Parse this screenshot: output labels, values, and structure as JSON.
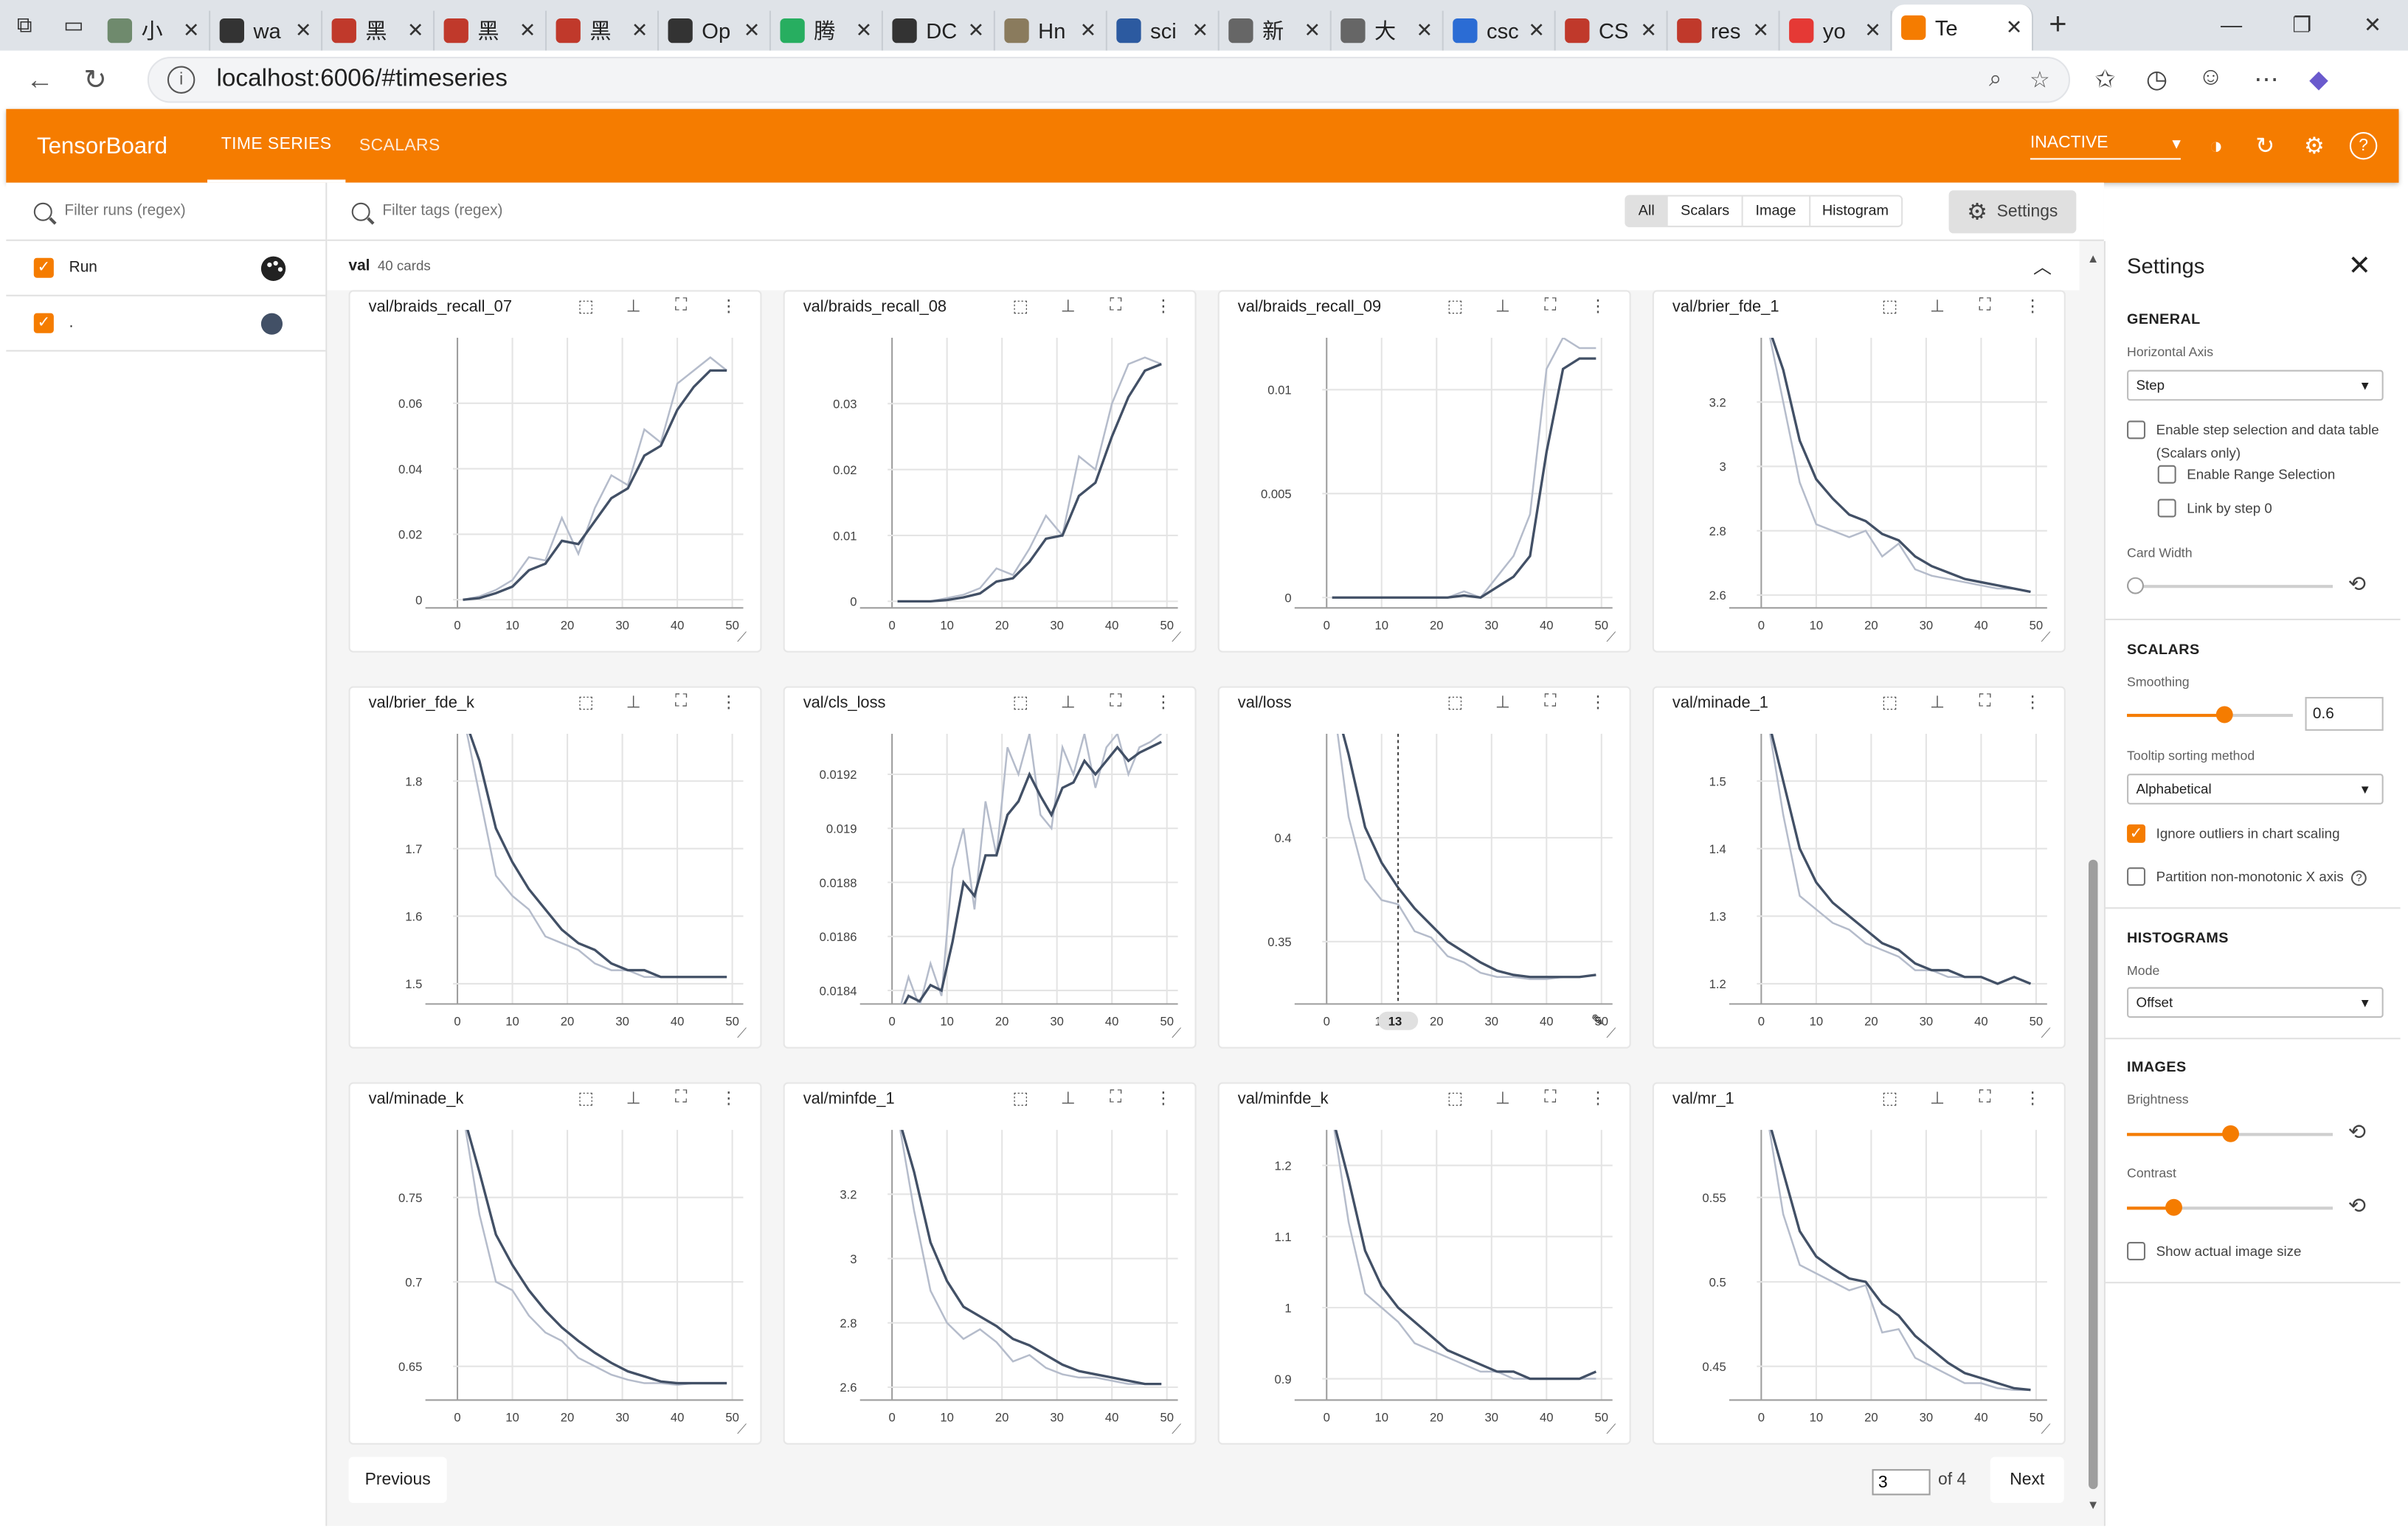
{
  "browser": {
    "tabs": [
      {
        "label": "小",
        "color": "#6f8a6d"
      },
      {
        "label": "wa",
        "color": "#333333"
      },
      {
        "label": "黑",
        "color": "#c0392b"
      },
      {
        "label": "黑",
        "color": "#c0392b"
      },
      {
        "label": "黑",
        "color": "#c0392b"
      },
      {
        "label": "Op",
        "color": "#333333"
      },
      {
        "label": "腾",
        "color": "#27ae60"
      },
      {
        "label": "DC",
        "color": "#333333"
      },
      {
        "label": "Hn",
        "color": "#8a7b5d"
      },
      {
        "label": "sci",
        "color": "#2c5aa0"
      },
      {
        "label": "新",
        "color": "#666666"
      },
      {
        "label": "大",
        "color": "#666666"
      },
      {
        "label": "csc",
        "color": "#2b6cd4"
      },
      {
        "label": "CS",
        "color": "#c0392b"
      },
      {
        "label": "res",
        "color": "#c0392b"
      },
      {
        "label": "yo",
        "color": "#e53935"
      },
      {
        "label": "Te",
        "color": "#f57c00",
        "active": true
      }
    ],
    "address": "localhost:6006/#timeseries"
  },
  "header": {
    "brand": "TensorBoard",
    "tabs": [
      "TIME SERIES",
      "SCALARS"
    ],
    "active_tab": 0,
    "reload_status": "INACTIVE",
    "accent": "#f57c00"
  },
  "sidebar": {
    "filter_placeholder": "Filter runs (regex)",
    "header_label": "Run",
    "runs": [
      {
        "name": ".",
        "color": "#425066"
      }
    ]
  },
  "main": {
    "tag_filter_placeholder": "Filter tags (regex)",
    "type_filters": [
      "All",
      "Scalars",
      "Image",
      "Histogram"
    ],
    "settings_button": "Settings",
    "group_name": "val",
    "group_count": "40 cards",
    "hover_step": "13"
  },
  "pagination": {
    "previous": "Previous",
    "next": "Next",
    "page": "3",
    "of_text": "of 4"
  },
  "settings": {
    "title": "Settings",
    "general": "GENERAL",
    "horizontal_axis_label": "Horizontal Axis",
    "horizontal_axis_value": "Step",
    "enable_step_selection": "Enable step selection and data table",
    "scalars_only": "(Scalars only)",
    "enable_range_selection": "Enable Range Selection",
    "link_by_step": "Link by step 0",
    "card_width_label": "Card Width",
    "card_width": 0.0,
    "scalars": "SCALARS",
    "smoothing_label": "Smoothing",
    "smoothing": "0.6",
    "tooltip_sorting_label": "Tooltip sorting method",
    "tooltip_sorting_value": "Alphabetical",
    "ignore_outliers": "Ignore outliers in chart scaling",
    "partition_nonmonotonic": "Partition non-monotonic X axis",
    "histograms": "HISTOGRAMS",
    "mode_label": "Mode",
    "mode_value": "Offset",
    "images": "IMAGES",
    "brightness_label": "Brightness",
    "brightness": 0.5,
    "contrast_label": "Contrast",
    "contrast": 0.2,
    "show_actual_size": "Show actual image size"
  },
  "chart_data": [
    {
      "type": "line",
      "title": "val/braids_recall_07",
      "xticks": [
        0,
        10,
        20,
        30,
        40,
        50
      ],
      "yticks": [
        "0",
        "0.02",
        "0.04",
        "0.06"
      ],
      "ylim": [
        -0.0025,
        0.08
      ],
      "x": [
        1,
        4,
        7,
        10,
        13,
        16,
        19,
        22,
        25,
        28,
        31,
        34,
        37,
        40,
        43,
        46,
        49
      ],
      "series": [
        {
          "name": "raw",
          "values": [
            0,
            0.001,
            0.003,
            0.006,
            0.013,
            0.012,
            0.025,
            0.014,
            0.028,
            0.038,
            0.035,
            0.052,
            0.048,
            0.066,
            0.07,
            0.074,
            0.07
          ]
        },
        {
          "name": "smoothed",
          "values": [
            0,
            0.0005,
            0.002,
            0.004,
            0.009,
            0.011,
            0.018,
            0.017,
            0.024,
            0.031,
            0.034,
            0.044,
            0.047,
            0.058,
            0.065,
            0.07,
            0.07
          ]
        }
      ]
    },
    {
      "type": "line",
      "title": "val/braids_recall_08",
      "xticks": [
        0,
        10,
        20,
        30,
        40,
        50
      ],
      "yticks": [
        "0",
        "0.01",
        "0.02",
        "0.03"
      ],
      "ylim": [
        -0.001,
        0.04
      ],
      "x": [
        1,
        4,
        7,
        10,
        13,
        16,
        19,
        22,
        25,
        28,
        31,
        34,
        37,
        40,
        43,
        46,
        49
      ],
      "series": [
        {
          "name": "raw",
          "values": [
            0,
            0,
            0,
            0.0005,
            0.001,
            0.002,
            0.005,
            0.004,
            0.008,
            0.013,
            0.01,
            0.022,
            0.02,
            0.03,
            0.036,
            0.037,
            0.036
          ]
        },
        {
          "name": "smoothed",
          "values": [
            0,
            0,
            0,
            0.0002,
            0.0006,
            0.0012,
            0.003,
            0.0035,
            0.006,
            0.0095,
            0.01,
            0.016,
            0.018,
            0.025,
            0.031,
            0.035,
            0.036
          ]
        }
      ]
    },
    {
      "type": "line",
      "title": "val/braids_recall_09",
      "xticks": [
        0,
        10,
        20,
        30,
        40,
        50
      ],
      "yticks": [
        "0",
        "0.005",
        "0.01"
      ],
      "ylim": [
        -0.0005,
        0.0125
      ],
      "x": [
        1,
        4,
        7,
        10,
        13,
        16,
        19,
        22,
        25,
        28,
        31,
        34,
        37,
        40,
        43,
        46,
        49
      ],
      "series": [
        {
          "name": "raw",
          "values": [
            0,
            0,
            0,
            0,
            0,
            0,
            0,
            0,
            0.0003,
            0,
            0.001,
            0.002,
            0.004,
            0.011,
            0.0125,
            0.012,
            0.012
          ]
        },
        {
          "name": "smoothed",
          "values": [
            0,
            0,
            0,
            0,
            0,
            0,
            0,
            0,
            0.0001,
            0,
            0.0005,
            0.001,
            0.002,
            0.007,
            0.011,
            0.0115,
            0.0115
          ]
        }
      ]
    },
    {
      "type": "line",
      "title": "val/brier_fde_1",
      "xticks": [
        0,
        10,
        20,
        30,
        40,
        50
      ],
      "yticks": [
        "2.6",
        "2.8",
        "3",
        "3.2"
      ],
      "ylim": [
        2.56,
        3.4
      ],
      "x": [
        1,
        4,
        7,
        10,
        13,
        16,
        19,
        22,
        25,
        28,
        31,
        34,
        37,
        40,
        43,
        46,
        49
      ],
      "series": [
        {
          "name": "raw",
          "values": [
            3.45,
            3.2,
            2.95,
            2.82,
            2.8,
            2.78,
            2.8,
            2.72,
            2.76,
            2.68,
            2.66,
            2.65,
            2.64,
            2.63,
            2.62,
            2.62,
            2.61
          ]
        },
        {
          "name": "smoothed",
          "values": [
            3.45,
            3.3,
            3.08,
            2.96,
            2.9,
            2.85,
            2.83,
            2.79,
            2.77,
            2.72,
            2.69,
            2.67,
            2.65,
            2.64,
            2.63,
            2.62,
            2.61
          ]
        }
      ]
    },
    {
      "type": "line",
      "title": "val/brier_fde_k",
      "xticks": [
        0,
        10,
        20,
        30,
        40,
        50
      ],
      "yticks": [
        "1.5",
        "1.6",
        "1.7",
        "1.8"
      ],
      "ylim": [
        1.47,
        1.87
      ],
      "x": [
        1,
        4,
        7,
        10,
        13,
        16,
        19,
        22,
        25,
        28,
        31,
        34,
        37,
        40,
        43,
        46,
        49
      ],
      "series": [
        {
          "name": "raw",
          "values": [
            1.9,
            1.78,
            1.66,
            1.63,
            1.61,
            1.57,
            1.56,
            1.55,
            1.53,
            1.52,
            1.52,
            1.51,
            1.51,
            1.51,
            1.51,
            1.51,
            1.51
          ]
        },
        {
          "name": "smoothed",
          "values": [
            1.9,
            1.83,
            1.73,
            1.68,
            1.64,
            1.61,
            1.58,
            1.56,
            1.55,
            1.53,
            1.52,
            1.52,
            1.51,
            1.51,
            1.51,
            1.51,
            1.51
          ]
        }
      ]
    },
    {
      "type": "line",
      "title": "val/cls_loss",
      "xticks": [
        0,
        10,
        20,
        30,
        40,
        50
      ],
      "yticks": [
        "0.0184",
        "0.0186",
        "0.0188",
        "0.019",
        "0.0192"
      ],
      "ylim": [
        0.01835,
        0.01935
      ],
      "x": [
        1,
        3,
        5,
        7,
        9,
        11,
        13,
        15,
        17,
        19,
        21,
        23,
        25,
        27,
        29,
        31,
        33,
        35,
        37,
        39,
        41,
        43,
        45,
        47,
        49
      ],
      "series": [
        {
          "name": "raw",
          "values": [
            0.0183,
            0.01845,
            0.01834,
            0.0185,
            0.01838,
            0.01885,
            0.019,
            0.0187,
            0.0191,
            0.0189,
            0.0193,
            0.0192,
            0.01935,
            0.01905,
            0.019,
            0.0193,
            0.0192,
            0.01935,
            0.01915,
            0.0193,
            0.01935,
            0.0192,
            0.0193,
            0.01932,
            0.01935
          ]
        },
        {
          "name": "smoothed",
          "values": [
            0.0183,
            0.01838,
            0.01836,
            0.01842,
            0.0184,
            0.01858,
            0.0188,
            0.01875,
            0.0189,
            0.0189,
            0.01905,
            0.0191,
            0.0192,
            0.01912,
            0.01905,
            0.01915,
            0.01917,
            0.01925,
            0.0192,
            0.01925,
            0.0193,
            0.01925,
            0.01928,
            0.0193,
            0.01932
          ]
        }
      ]
    },
    {
      "type": "line",
      "title": "val/loss",
      "xticks": [
        0,
        10,
        20,
        30,
        40,
        50
      ],
      "yticks": [
        "0.35",
        "0.4"
      ],
      "ylim": [
        0.32,
        0.45
      ],
      "x": [
        1,
        4,
        7,
        10,
        13,
        16,
        19,
        22,
        25,
        28,
        31,
        34,
        37,
        40,
        43,
        46,
        49
      ],
      "series": [
        {
          "name": "raw",
          "values": [
            0.47,
            0.41,
            0.38,
            0.37,
            0.368,
            0.355,
            0.352,
            0.343,
            0.34,
            0.335,
            0.333,
            0.333,
            0.332,
            0.332,
            0.333,
            0.333,
            0.334
          ]
        },
        {
          "name": "smoothed",
          "values": [
            0.47,
            0.44,
            0.405,
            0.388,
            0.376,
            0.366,
            0.358,
            0.35,
            0.345,
            0.34,
            0.336,
            0.334,
            0.333,
            0.333,
            0.333,
            0.333,
            0.334
          ]
        }
      ]
    },
    {
      "type": "line",
      "title": "val/minade_1",
      "xticks": [
        0,
        10,
        20,
        30,
        40,
        50
      ],
      "yticks": [
        "1.2",
        "1.3",
        "1.4",
        "1.5"
      ],
      "ylim": [
        1.17,
        1.57
      ],
      "x": [
        1,
        4,
        7,
        10,
        13,
        16,
        19,
        22,
        25,
        28,
        31,
        34,
        37,
        40,
        43,
        46,
        49
      ],
      "series": [
        {
          "name": "raw",
          "values": [
            1.6,
            1.45,
            1.33,
            1.31,
            1.29,
            1.28,
            1.26,
            1.25,
            1.24,
            1.22,
            1.22,
            1.21,
            1.21,
            1.21,
            1.2,
            1.21,
            1.2
          ]
        },
        {
          "name": "smoothed",
          "values": [
            1.6,
            1.5,
            1.4,
            1.35,
            1.32,
            1.3,
            1.28,
            1.26,
            1.25,
            1.23,
            1.22,
            1.22,
            1.21,
            1.21,
            1.2,
            1.21,
            1.2
          ]
        }
      ]
    },
    {
      "type": "line",
      "title": "val/minade_k",
      "xticks": [
        0,
        10,
        20,
        30,
        40,
        50
      ],
      "yticks": [
        "0.65",
        "0.7",
        "0.75"
      ],
      "ylim": [
        0.63,
        0.79
      ],
      "x": [
        1,
        4,
        7,
        10,
        13,
        16,
        19,
        22,
        25,
        28,
        31,
        34,
        37,
        40,
        43,
        46,
        49
      ],
      "series": [
        {
          "name": "raw",
          "values": [
            0.8,
            0.74,
            0.7,
            0.695,
            0.68,
            0.67,
            0.665,
            0.655,
            0.65,
            0.645,
            0.642,
            0.64,
            0.64,
            0.639,
            0.64,
            0.64,
            0.64
          ]
        },
        {
          "name": "smoothed",
          "values": [
            0.8,
            0.765,
            0.728,
            0.71,
            0.695,
            0.683,
            0.673,
            0.665,
            0.658,
            0.652,
            0.647,
            0.644,
            0.641,
            0.64,
            0.64,
            0.64,
            0.64
          ]
        }
      ]
    },
    {
      "type": "line",
      "title": "val/minfde_1",
      "xticks": [
        0,
        10,
        20,
        30,
        40,
        50
      ],
      "yticks": [
        "2.6",
        "2.8",
        "3",
        "3.2"
      ],
      "ylim": [
        2.56,
        3.4
      ],
      "x": [
        1,
        4,
        7,
        10,
        13,
        16,
        19,
        22,
        25,
        28,
        31,
        34,
        37,
        40,
        43,
        46,
        49
      ],
      "series": [
        {
          "name": "raw",
          "values": [
            3.45,
            3.15,
            2.9,
            2.8,
            2.75,
            2.78,
            2.74,
            2.68,
            2.7,
            2.66,
            2.64,
            2.63,
            2.63,
            2.62,
            2.61,
            2.61,
            2.61
          ]
        },
        {
          "name": "smoothed",
          "values": [
            3.45,
            3.27,
            3.05,
            2.93,
            2.85,
            2.82,
            2.79,
            2.75,
            2.73,
            2.7,
            2.67,
            2.65,
            2.64,
            2.63,
            2.62,
            2.61,
            2.61
          ]
        }
      ]
    },
    {
      "type": "line",
      "title": "val/minfde_k",
      "xticks": [
        0,
        10,
        20,
        30,
        40,
        50
      ],
      "yticks": [
        "0.9",
        "1",
        "1.1",
        "1.2"
      ],
      "ylim": [
        0.87,
        1.25
      ],
      "x": [
        1,
        4,
        7,
        10,
        13,
        16,
        19,
        22,
        25,
        28,
        31,
        34,
        37,
        40,
        43,
        46,
        49
      ],
      "series": [
        {
          "name": "raw",
          "values": [
            1.27,
            1.12,
            1.02,
            1.0,
            0.98,
            0.95,
            0.94,
            0.93,
            0.92,
            0.91,
            0.91,
            0.9,
            0.9,
            0.9,
            0.9,
            0.9,
            0.9
          ]
        },
        {
          "name": "smoothed",
          "values": [
            1.27,
            1.18,
            1.08,
            1.03,
            1.0,
            0.98,
            0.96,
            0.94,
            0.93,
            0.92,
            0.91,
            0.91,
            0.9,
            0.9,
            0.9,
            0.9,
            0.91
          ]
        }
      ]
    },
    {
      "type": "line",
      "title": "val/mr_1",
      "xticks": [
        0,
        10,
        20,
        30,
        40,
        50
      ],
      "yticks": [
        "0.45",
        "0.5",
        "0.55"
      ],
      "ylim": [
        0.43,
        0.59
      ],
      "x": [
        1,
        4,
        7,
        10,
        13,
        16,
        19,
        22,
        25,
        28,
        31,
        34,
        37,
        40,
        43,
        46,
        49
      ],
      "series": [
        {
          "name": "raw",
          "values": [
            0.6,
            0.54,
            0.51,
            0.505,
            0.5,
            0.495,
            0.498,
            0.47,
            0.472,
            0.455,
            0.45,
            0.445,
            0.44,
            0.44,
            0.437,
            0.436,
            0.436
          ]
        },
        {
          "name": "smoothed",
          "values": [
            0.6,
            0.565,
            0.53,
            0.515,
            0.508,
            0.502,
            0.5,
            0.487,
            0.48,
            0.468,
            0.46,
            0.452,
            0.446,
            0.443,
            0.44,
            0.437,
            0.436
          ]
        }
      ]
    }
  ]
}
